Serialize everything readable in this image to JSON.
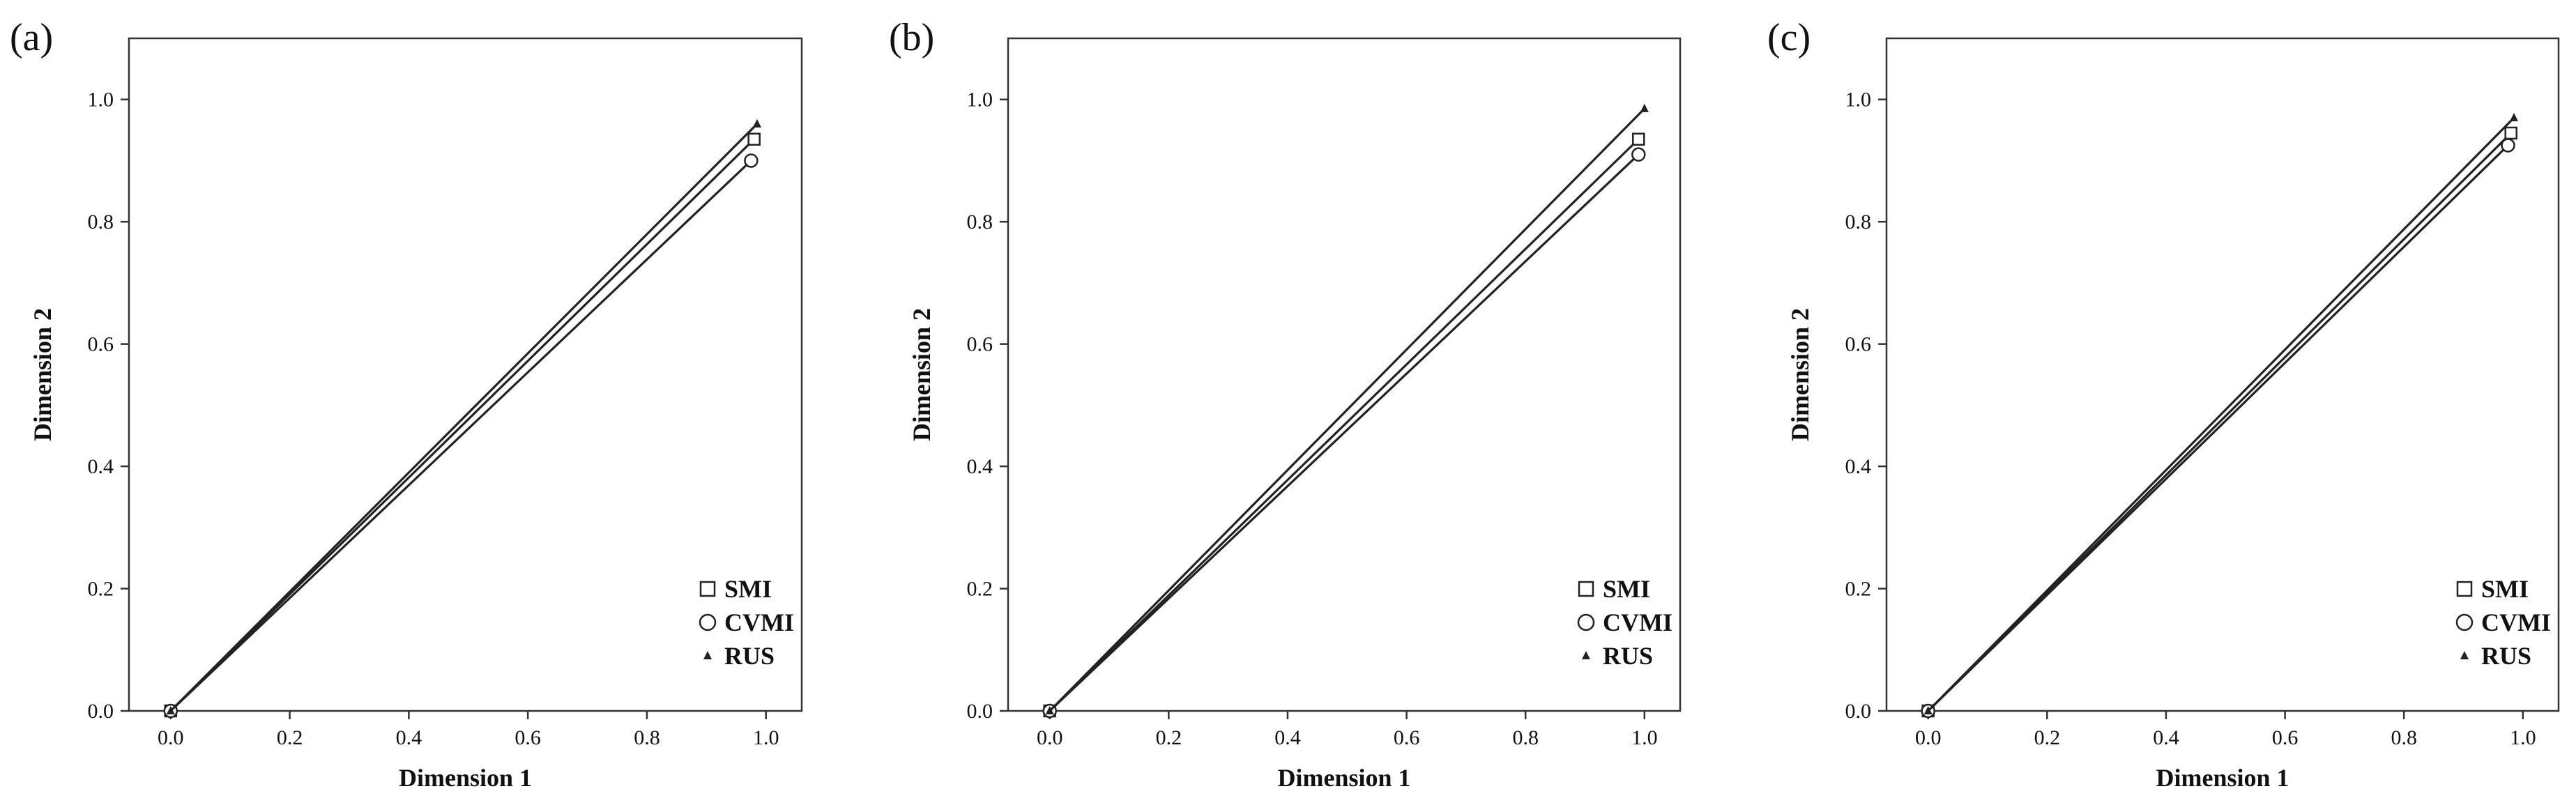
{
  "figure": {
    "panels": [
      "(a)",
      "(b)",
      "(c)"
    ]
  },
  "chart_data": [
    {
      "type": "line",
      "panel_label": "(a)",
      "xlabel": "Dimension 1",
      "ylabel": "Dimension 2",
      "xlim": [
        -0.07,
        1.06
      ],
      "ylim": [
        0.0,
        1.1
      ],
      "xticks": [
        "0.0",
        "0.2",
        "0.4",
        "0.6",
        "0.8",
        "1.0"
      ],
      "yticks": [
        "0.0",
        "0.2",
        "0.4",
        "0.6",
        "0.8",
        "1.0"
      ],
      "grid": false,
      "legend_position": "bottom-right",
      "series": [
        {
          "name": "SMI",
          "marker": "square",
          "x": [
            0.0,
            0.98
          ],
          "y": [
            0.0,
            0.935
          ]
        },
        {
          "name": "CVMI",
          "marker": "circle",
          "x": [
            0.0,
            0.975
          ],
          "y": [
            0.0,
            0.9
          ]
        },
        {
          "name": "RUS",
          "marker": "triangle",
          "x": [
            0.0,
            0.985
          ],
          "y": [
            0.0,
            0.96
          ]
        }
      ]
    },
    {
      "type": "line",
      "panel_label": "(b)",
      "xlabel": "Dimension 1",
      "ylabel": "Dimension 2",
      "xlim": [
        -0.07,
        1.06
      ],
      "ylim": [
        0.0,
        1.1
      ],
      "xticks": [
        "0.0",
        "0.2",
        "0.4",
        "0.6",
        "0.8",
        "1.0"
      ],
      "yticks": [
        "0.0",
        "0.2",
        "0.4",
        "0.6",
        "0.8",
        "1.0"
      ],
      "grid": false,
      "legend_position": "bottom-right",
      "series": [
        {
          "name": "SMI",
          "marker": "square",
          "x": [
            0.0,
            0.99
          ],
          "y": [
            0.0,
            0.935
          ]
        },
        {
          "name": "CVMI",
          "marker": "circle",
          "x": [
            0.0,
            0.99
          ],
          "y": [
            0.0,
            0.91
          ]
        },
        {
          "name": "RUS",
          "marker": "triangle",
          "x": [
            0.0,
            1.0
          ],
          "y": [
            0.0,
            0.985
          ]
        }
      ]
    },
    {
      "type": "line",
      "panel_label": "(c)",
      "xlabel": "Dimension 1",
      "ylabel": "Dimension 2",
      "xlim": [
        -0.07,
        1.06
      ],
      "ylim": [
        0.0,
        1.1
      ],
      "xticks": [
        "0.0",
        "0.2",
        "0.4",
        "0.6",
        "0.8",
        "1.0"
      ],
      "yticks": [
        "0.0",
        "0.2",
        "0.4",
        "0.6",
        "0.8",
        "1.0"
      ],
      "grid": false,
      "legend_position": "bottom-right",
      "series": [
        {
          "name": "SMI",
          "marker": "square",
          "x": [
            0.0,
            0.98
          ],
          "y": [
            0.0,
            0.945
          ]
        },
        {
          "name": "CVMI",
          "marker": "circle",
          "x": [
            0.0,
            0.975
          ],
          "y": [
            0.0,
            0.925
          ]
        },
        {
          "name": "RUS",
          "marker": "triangle",
          "x": [
            0.0,
            0.985
          ],
          "y": [
            0.0,
            0.97
          ]
        }
      ]
    }
  ]
}
